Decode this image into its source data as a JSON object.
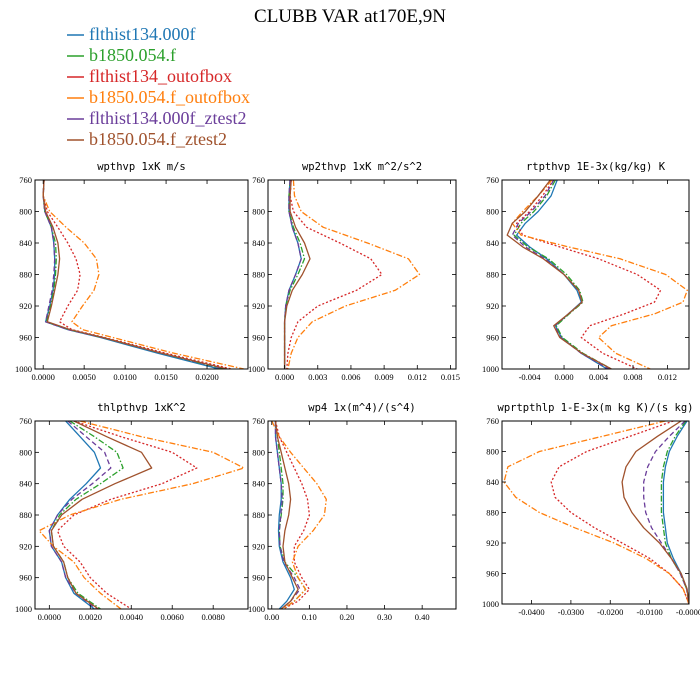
{
  "title": "CLUBB VAR at170E,9N",
  "legend": [
    {
      "label": "flthist134.000f",
      "color": "#1f77b4",
      "dash": "solid"
    },
    {
      "label": "b1850.054.f",
      "color": "#2ca02c",
      "dash": "dashdot"
    },
    {
      "label": "flthist134_outofbox",
      "color": "#d62728",
      "dash": "dot"
    },
    {
      "label": "b1850.054.f_outofbox",
      "color": "#ff7f0e",
      "dash": "dashdot"
    },
    {
      "label": "flthist134.000f_ztest2",
      "color": "#6a3d9a",
      "dash": "dash"
    },
    {
      "label": "b1850.054.f_ztest2",
      "color": "#a0522d",
      "dash": "solid"
    }
  ],
  "chart_data": [
    {
      "type": "line",
      "title": "wpthvp  1xK m/s",
      "xlim": [
        -0.001,
        0.025
      ],
      "ylim": [
        760,
        1000
      ],
      "y_inverted": true,
      "xticks": [
        "0.0000",
        "0.0050",
        "0.0100",
        "0.0150",
        "0.0200"
      ],
      "xtick_values": [
        0,
        0.005,
        0.01,
        0.015,
        0.02
      ],
      "yticks": [
        "760",
        "800",
        "840",
        "880",
        "920",
        "960",
        "1000"
      ],
      "ytick_values": [
        760,
        800,
        840,
        880,
        920,
        960,
        1000
      ],
      "y": [
        760,
        780,
        800,
        820,
        840,
        860,
        880,
        900,
        920,
        940,
        950,
        960,
        980,
        1000
      ],
      "series": [
        {
          "values": [
            0.0001,
            0.0,
            0.0002,
            0.001,
            0.0013,
            0.0014,
            0.0014,
            0.0012,
            0.0008,
            0.0003,
            0.003,
            0.007,
            0.014,
            0.0215
          ]
        },
        {
          "values": [
            0.0001,
            0.0,
            0.0002,
            0.001,
            0.0015,
            0.0016,
            0.0015,
            0.0013,
            0.0009,
            0.0004,
            0.0032,
            0.0072,
            0.0145,
            0.022
          ]
        },
        {
          "values": [
            0.0001,
            0.0,
            0.0005,
            0.0018,
            0.003,
            0.004,
            0.0045,
            0.0042,
            0.003,
            0.002,
            0.0035,
            0.0075,
            0.015,
            0.023
          ]
        },
        {
          "values": [
            0.0001,
            0.0,
            0.0008,
            0.0028,
            0.005,
            0.0065,
            0.0068,
            0.0062,
            0.0048,
            0.0035,
            0.0048,
            0.0085,
            0.016,
            0.0245
          ]
        },
        {
          "values": [
            0.0001,
            0.0,
            0.0002,
            0.001,
            0.0013,
            0.0014,
            0.0013,
            0.0011,
            0.0007,
            0.0003,
            0.003,
            0.0072,
            0.0145,
            0.0222
          ]
        },
        {
          "values": [
            0.0001,
            0.0,
            0.0003,
            0.0012,
            0.0018,
            0.002,
            0.0018,
            0.0014,
            0.001,
            0.0005,
            0.0033,
            0.0073,
            0.0145,
            0.0225
          ]
        }
      ]
    },
    {
      "type": "line",
      "title": "wp2thvp  1xK m^2/s^2",
      "xlim": [
        -0.0015,
        0.0155
      ],
      "ylim": [
        760,
        1000
      ],
      "y_inverted": true,
      "xticks": [
        "0.000",
        "0.003",
        "0.006",
        "0.009",
        "0.012",
        "0.015"
      ],
      "xtick_values": [
        0,
        0.003,
        0.006,
        0.009,
        0.012,
        0.015
      ],
      "yticks": [
        "760",
        "800",
        "840",
        "880",
        "920",
        "960",
        "1000"
      ],
      "ytick_values": [
        760,
        800,
        840,
        880,
        920,
        960,
        1000
      ],
      "y": [
        760,
        780,
        800,
        820,
        840,
        860,
        880,
        900,
        920,
        940,
        960,
        980,
        1000
      ],
      "series": [
        {
          "values": [
            0.0005,
            0.0004,
            0.0004,
            0.0007,
            0.0012,
            0.0015,
            0.001,
            0.0004,
            0.0001,
            0.0,
            0.0,
            0.0,
            0.0
          ]
        },
        {
          "values": [
            0.0005,
            0.0004,
            0.0004,
            0.0008,
            0.0014,
            0.0018,
            0.0012,
            0.0005,
            0.0001,
            0.0,
            0.0,
            0.0,
            0.0
          ]
        },
        {
          "values": [
            0.0006,
            0.0005,
            0.0008,
            0.002,
            0.005,
            0.0078,
            0.0088,
            0.0065,
            0.003,
            0.0012,
            0.0006,
            0.0003,
            0.0002
          ]
        },
        {
          "values": [
            0.0008,
            0.0009,
            0.0015,
            0.0035,
            0.0075,
            0.0112,
            0.0122,
            0.01,
            0.0055,
            0.0025,
            0.0012,
            0.0006,
            0.0003
          ]
        },
        {
          "values": [
            0.0005,
            0.0004,
            0.0004,
            0.0007,
            0.0012,
            0.0015,
            0.001,
            0.0004,
            0.0001,
            0.0,
            0.0,
            0.0,
            0.0
          ]
        },
        {
          "values": [
            0.0006,
            0.0005,
            0.0005,
            0.001,
            0.0018,
            0.0023,
            0.0016,
            0.0007,
            0.0002,
            0.0,
            0.0,
            0.0,
            0.0
          ]
        }
      ]
    },
    {
      "type": "line",
      "title": "rtpthvp  1E-3x(kg/kg) K",
      "xlim": [
        -0.0072,
        0.0145
      ],
      "ylim": [
        760,
        1000
      ],
      "y_inverted": true,
      "xticks": [
        "-0.004",
        "0.000",
        "0.004",
        "0.008",
        "0.012"
      ],
      "xtick_values": [
        -0.004,
        0,
        0.004,
        0.008,
        0.012
      ],
      "yticks": [
        "760",
        "800",
        "840",
        "880",
        "920",
        "960",
        "1000"
      ],
      "ytick_values": [
        760,
        800,
        840,
        880,
        920,
        960,
        1000
      ],
      "y": [
        760,
        780,
        800,
        815,
        830,
        845,
        860,
        880,
        900,
        915,
        930,
        945,
        960,
        980,
        1000
      ],
      "series": [
        {
          "values": [
            -0.0008,
            -0.0015,
            -0.003,
            -0.0045,
            -0.0055,
            -0.004,
            -0.002,
            0.0,
            0.0015,
            0.002,
            0.0005,
            -0.001,
            -0.0003,
            0.002,
            0.005
          ]
        },
        {
          "values": [
            -0.001,
            -0.002,
            -0.0035,
            -0.005,
            -0.0058,
            -0.0042,
            -0.0018,
            0.0003,
            0.0018,
            0.0022,
            0.0006,
            -0.0009,
            -0.0002,
            0.0022,
            0.0055
          ]
        },
        {
          "values": [
            -0.0012,
            -0.0025,
            -0.004,
            -0.0055,
            -0.0048,
            -0.0005,
            0.004,
            0.0085,
            0.0112,
            0.0105,
            0.007,
            0.003,
            0.002,
            0.0045,
            0.0085
          ]
        },
        {
          "values": [
            -0.0014,
            -0.003,
            -0.0048,
            -0.006,
            -0.005,
            0.0005,
            0.0065,
            0.0118,
            0.0143,
            0.0138,
            0.0105,
            0.0055,
            0.004,
            0.006,
            0.01
          ]
        },
        {
          "values": [
            -0.0012,
            -0.0022,
            -0.0038,
            -0.0053,
            -0.006,
            -0.0045,
            -0.0022,
            0.0,
            0.0017,
            0.0021,
            0.0005,
            -0.0011,
            -0.0004,
            0.002,
            0.0052
          ]
        },
        {
          "values": [
            -0.0016,
            -0.003,
            -0.0045,
            -0.006,
            -0.0066,
            -0.0048,
            -0.0024,
            0.0,
            0.0017,
            0.0021,
            0.0005,
            -0.0012,
            -0.0005,
            0.0021,
            0.0055
          ]
        }
      ]
    },
    {
      "type": "line",
      "title": "thlpthvp  1xK^2",
      "xlim": [
        -0.0007,
        0.0097
      ],
      "ylim": [
        760,
        1000
      ],
      "y_inverted": true,
      "xticks": [
        "0.0000",
        "0.0020",
        "0.0040",
        "0.0060",
        "0.0080"
      ],
      "xtick_values": [
        0,
        0.002,
        0.004,
        0.006,
        0.008
      ],
      "yticks": [
        "760",
        "800",
        "840",
        "880",
        "920",
        "960",
        "1000"
      ],
      "ytick_values": [
        760,
        800,
        840,
        880,
        920,
        960,
        1000
      ],
      "y": [
        760,
        780,
        800,
        820,
        840,
        860,
        880,
        900,
        920,
        940,
        960,
        980,
        1000
      ],
      "series": [
        {
          "values": [
            0.0008,
            0.0015,
            0.0022,
            0.0025,
            0.0018,
            0.001,
            0.0004,
            0.0,
            0.0001,
            0.0006,
            0.0008,
            0.0012,
            0.0022
          ]
        },
        {
          "values": [
            0.001,
            0.0022,
            0.0033,
            0.0036,
            0.0025,
            0.0013,
            0.0005,
            0.0001,
            0.0002,
            0.0007,
            0.0009,
            0.0014,
            0.0025
          ]
        },
        {
          "values": [
            0.0012,
            0.0035,
            0.006,
            0.0072,
            0.0055,
            0.003,
            0.0012,
            0.0004,
            0.0007,
            0.0015,
            0.002,
            0.0028,
            0.004
          ]
        },
        {
          "values": [
            0.0015,
            0.0045,
            0.008,
            0.0095,
            0.007,
            0.0035,
            0.001,
            -0.0005,
            0.0002,
            0.0012,
            0.0017,
            0.0025,
            0.0035
          ]
        },
        {
          "values": [
            0.0009,
            0.0018,
            0.0027,
            0.003,
            0.0021,
            0.0011,
            0.0004,
            0.0,
            0.0001,
            0.0006,
            0.0008,
            0.0013,
            0.0023
          ]
        },
        {
          "values": [
            0.0012,
            0.0028,
            0.0045,
            0.005,
            0.0032,
            0.0016,
            0.0006,
            0.0001,
            0.0002,
            0.0007,
            0.0009,
            0.0013,
            0.0024
          ]
        }
      ]
    },
    {
      "type": "line",
      "title": "wp4   1x(m^4)/(s^4)",
      "xlim": [
        -0.01,
        0.49
      ],
      "ylim": [
        760,
        1000
      ],
      "y_inverted": true,
      "xticks": [
        "0.00",
        "0.10",
        "0.20",
        "0.30",
        "0.40"
      ],
      "xtick_values": [
        0,
        0.1,
        0.2,
        0.3,
        0.4
      ],
      "yticks": [
        "760",
        "800",
        "840",
        "880",
        "920",
        "960",
        "1000"
      ],
      "ytick_values": [
        760,
        800,
        840,
        880,
        920,
        960,
        1000
      ],
      "y": [
        760,
        780,
        800,
        820,
        840,
        860,
        880,
        900,
        920,
        940,
        960,
        975,
        990,
        1000
      ],
      "series": [
        {
          "values": [
            0.01,
            0.01,
            0.015,
            0.02,
            0.025,
            0.025,
            0.02,
            0.018,
            0.02,
            0.03,
            0.05,
            0.06,
            0.04,
            0.02
          ]
        },
        {
          "values": [
            0.01,
            0.015,
            0.02,
            0.025,
            0.03,
            0.03,
            0.025,
            0.02,
            0.022,
            0.035,
            0.07,
            0.09,
            0.06,
            0.03
          ]
        },
        {
          "values": [
            0.01,
            0.02,
            0.04,
            0.06,
            0.08,
            0.095,
            0.1,
            0.085,
            0.06,
            0.06,
            0.08,
            0.1,
            0.07,
            0.03
          ]
        },
        {
          "values": [
            0.0,
            0.02,
            0.05,
            0.085,
            0.12,
            0.145,
            0.14,
            0.11,
            0.07,
            0.055,
            0.07,
            0.09,
            0.06,
            0.03
          ]
        },
        {
          "values": [
            0.01,
            0.01,
            0.015,
            0.02,
            0.025,
            0.028,
            0.024,
            0.02,
            0.022,
            0.032,
            0.06,
            0.075,
            0.05,
            0.025
          ]
        },
        {
          "values": [
            0.01,
            0.015,
            0.025,
            0.035,
            0.045,
            0.05,
            0.045,
            0.035,
            0.03,
            0.035,
            0.055,
            0.07,
            0.05,
            0.025
          ]
        }
      ]
    },
    {
      "type": "line",
      "title": "wprtpthlp  1-E-3x(m kg K)/(s kg)",
      "xlim": [
        -0.0475,
        0.0
      ],
      "ylim": [
        760,
        1000
      ],
      "y_inverted": true,
      "xticks": [
        "-0.0400",
        "-0.0300",
        "-0.0200",
        "-0.0100",
        "-0.0000"
      ],
      "xtick_values": [
        -0.04,
        -0.03,
        -0.02,
        -0.01,
        0
      ],
      "yticks": [
        "760",
        "800",
        "840",
        "880",
        "920",
        "960",
        "1000"
      ],
      "ytick_values": [
        760,
        800,
        840,
        880,
        920,
        960,
        1000
      ],
      "y": [
        760,
        780,
        800,
        820,
        840,
        860,
        880,
        900,
        920,
        940,
        960,
        980,
        1000
      ],
      "series": [
        {
          "values": [
            -0.0005,
            -0.003,
            -0.005,
            -0.006,
            -0.0065,
            -0.0065,
            -0.0065,
            -0.006,
            -0.0055,
            -0.004,
            -0.002,
            -0.0005,
            0.0
          ]
        },
        {
          "values": [
            -0.0008,
            -0.0035,
            -0.0055,
            -0.0065,
            -0.007,
            -0.007,
            -0.007,
            -0.0065,
            -0.006,
            -0.0045,
            -0.0022,
            -0.0006,
            0.0
          ]
        },
        {
          "values": [
            -0.004,
            -0.015,
            -0.026,
            -0.033,
            -0.035,
            -0.034,
            -0.03,
            -0.024,
            -0.017,
            -0.01,
            -0.005,
            -0.0015,
            0.0
          ]
        },
        {
          "values": [
            -0.006,
            -0.022,
            -0.038,
            -0.046,
            -0.047,
            -0.044,
            -0.038,
            -0.029,
            -0.019,
            -0.011,
            -0.005,
            -0.0015,
            0.0
          ]
        },
        {
          "values": [
            -0.001,
            -0.005,
            -0.0085,
            -0.0105,
            -0.0115,
            -0.0115,
            -0.011,
            -0.0095,
            -0.007,
            -0.0045,
            -0.0022,
            -0.0006,
            0.0
          ]
        },
        {
          "values": [
            -0.002,
            -0.008,
            -0.0135,
            -0.016,
            -0.017,
            -0.0165,
            -0.0145,
            -0.0115,
            -0.0075,
            -0.0045,
            -0.002,
            -0.0005,
            0.0
          ]
        }
      ]
    }
  ]
}
